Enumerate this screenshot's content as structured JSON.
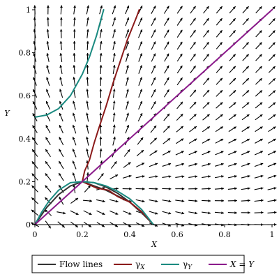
{
  "chart_data": {
    "type": "line",
    "title": "",
    "xlabel": "X",
    "ylabel": "Y",
    "xlim": [
      0,
      1
    ],
    "ylim": [
      0,
      1
    ],
    "x_ticks": [
      "0",
      "0.2",
      "0.4",
      "0.6",
      "0.8",
      "1"
    ],
    "y_ticks": [
      "0",
      "0.2",
      "0.4",
      "0.6",
      "0.8",
      "1"
    ],
    "grid": false,
    "legend": "bottom",
    "background_field": "direction arrows",
    "colors": {
      "flow_lines": "#333333",
      "gamma_x": "#8b1a1a",
      "gamma_y": "#1a8a80",
      "diagonal": "#8b1a8b",
      "arrows": "#000000"
    },
    "series": [
      {
        "name": "Flow lines",
        "key": "flow_lines",
        "segments": [
          [
            [
              0,
              0
            ],
            [
              0.05,
              0.08
            ],
            [
              0.1,
              0.14
            ],
            [
              0.15,
              0.18
            ],
            [
              0.2,
              0.2
            ],
            [
              0.25,
              0.195
            ],
            [
              0.3,
              0.175
            ],
            [
              0.35,
              0.145
            ],
            [
              0.4,
              0.105
            ],
            [
              0.45,
              0.055
            ],
            [
              0.5,
              0.0
            ]
          ],
          [
            [
              0.2,
              0.2
            ],
            [
              0.3,
              0.16
            ],
            [
              0.4,
              0.105
            ]
          ]
        ]
      },
      {
        "name": "γ_X",
        "key": "gamma_x",
        "segments": [
          [
            [
              0.2,
              0.2
            ],
            [
              0.21,
              0.25
            ],
            [
              0.23,
              0.3
            ],
            [
              0.25,
              0.38
            ],
            [
              0.27,
              0.45
            ],
            [
              0.3,
              0.55
            ],
            [
              0.33,
              0.66
            ],
            [
              0.36,
              0.76
            ],
            [
              0.39,
              0.86
            ],
            [
              0.43,
              0.97
            ],
            [
              0.44,
              1.0
            ]
          ],
          [
            [
              0.2,
              0.2
            ],
            [
              0.26,
              0.17
            ],
            [
              0.31,
              0.16
            ],
            [
              0.35,
              0.13
            ],
            [
              0.4,
              0.105
            ],
            [
              0.45,
              0.06
            ],
            [
              0.5,
              0.0
            ]
          ]
        ]
      },
      {
        "name": "γ_Y",
        "key": "gamma_y",
        "segments": [
          [
            [
              0,
              0
            ],
            [
              0.03,
              0.06
            ],
            [
              0.06,
              0.11
            ],
            [
              0.1,
              0.16
            ],
            [
              0.15,
              0.195
            ],
            [
              0.2,
              0.2
            ],
            [
              0.25,
              0.195
            ],
            [
              0.3,
              0.18
            ],
            [
              0.35,
              0.155
            ],
            [
              0.4,
              0.12
            ],
            [
              0.45,
              0.07
            ],
            [
              0.5,
              0.0
            ]
          ],
          [
            [
              0,
              0.5
            ],
            [
              0.05,
              0.51
            ],
            [
              0.1,
              0.54
            ],
            [
              0.15,
              0.6
            ],
            [
              0.2,
              0.7
            ],
            [
              0.23,
              0.78
            ],
            [
              0.26,
              0.88
            ],
            [
              0.28,
              0.96
            ],
            [
              0.29,
              1.0
            ]
          ]
        ]
      },
      {
        "name": "X = Y",
        "key": "diagonal",
        "segments": [
          [
            [
              0,
              0
            ],
            [
              1,
              1
            ]
          ]
        ]
      }
    ]
  },
  "legend": {
    "items": [
      {
        "label": "Flow lines",
        "key": "flow_lines",
        "italic": false
      },
      {
        "label": "γX",
        "key": "gamma_x",
        "italic": false,
        "base": "γ",
        "sub": "X"
      },
      {
        "label": "γY",
        "key": "gamma_y",
        "italic": false,
        "base": "γ",
        "sub": "Y"
      },
      {
        "label": "X = Y",
        "key": "diagonal",
        "italic": true
      }
    ]
  }
}
